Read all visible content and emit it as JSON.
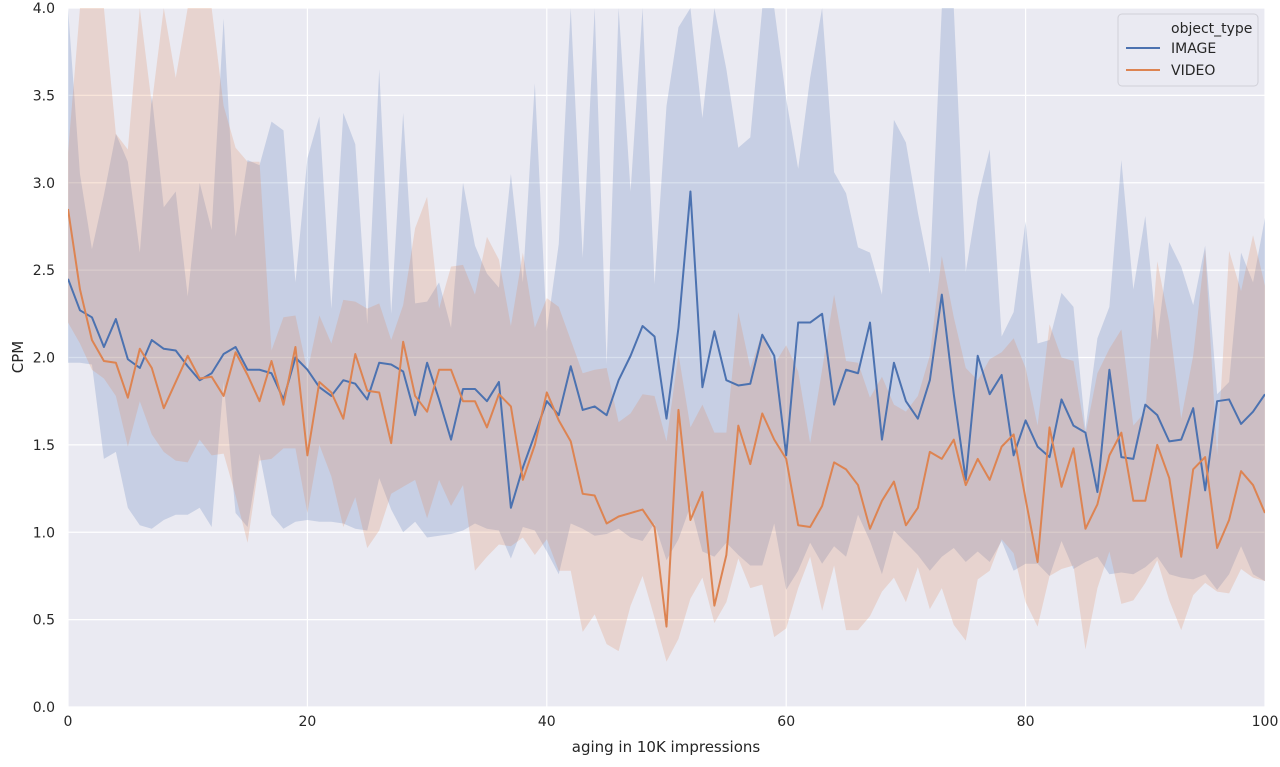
{
  "chart_data": {
    "type": "line",
    "xlabel": "aging in 10K impressions",
    "ylabel": "CPM",
    "xlim": [
      0,
      100
    ],
    "ylim": [
      0.0,
      4.0
    ],
    "xticks": [
      "0",
      "20",
      "40",
      "60",
      "80",
      "100"
    ],
    "yticks": [
      "0.0",
      "0.5",
      "1.0",
      "1.5",
      "2.0",
      "2.5",
      "3.0",
      "3.5",
      "4.0"
    ],
    "grid": true,
    "legend": {
      "title": "object_type",
      "placement": "top-right"
    },
    "x": [
      0,
      1,
      2,
      3,
      4,
      5,
      6,
      7,
      8,
      9,
      10,
      11,
      12,
      13,
      14,
      15,
      16,
      17,
      18,
      19,
      20,
      21,
      22,
      23,
      24,
      25,
      26,
      27,
      28,
      29,
      30,
      31,
      32,
      33,
      34,
      35,
      36,
      37,
      38,
      39,
      40,
      41,
      42,
      43,
      44,
      45,
      46,
      47,
      48,
      49,
      50,
      51,
      52,
      53,
      54,
      55,
      56,
      57,
      58,
      59,
      60,
      61,
      62,
      63,
      64,
      65,
      66,
      67,
      68,
      69,
      70,
      71,
      72,
      73,
      74,
      75,
      76,
      77,
      78,
      79,
      80,
      81,
      82,
      83,
      84,
      85,
      86,
      87,
      88,
      89,
      90,
      91,
      92,
      93,
      94,
      95,
      96,
      97,
      98,
      99,
      100
    ],
    "series": [
      {
        "name": "IMAGE",
        "color": "#4c72b0",
        "values": [
          2.45,
          2.27,
          2.23,
          2.06,
          2.22,
          1.99,
          1.94,
          2.1,
          2.05,
          2.04,
          1.95,
          1.87,
          1.91,
          2.02,
          2.06,
          1.93,
          1.93,
          1.91,
          1.76,
          2.0,
          1.93,
          1.83,
          1.78,
          1.87,
          1.85,
          1.76,
          1.97,
          1.96,
          1.92,
          1.67,
          1.97,
          1.76,
          1.53,
          1.82,
          1.82,
          1.75,
          1.86,
          1.14,
          1.37,
          1.56,
          1.75,
          1.67,
          1.95,
          1.7,
          1.72,
          1.67,
          1.87,
          2.01,
          2.18,
          2.12,
          1.65,
          2.17,
          2.95,
          1.83,
          2.15,
          1.87,
          1.84,
          1.85,
          2.13,
          2.01,
          1.44,
          2.2,
          2.2,
          2.25,
          1.73,
          1.93,
          1.91,
          2.2,
          1.53,
          1.97,
          1.75,
          1.65,
          1.87,
          2.36,
          1.79,
          1.3,
          2.01,
          1.79,
          1.9,
          1.44,
          1.64,
          1.49,
          1.43,
          1.76,
          1.61,
          1.57,
          1.23,
          1.93,
          1.43,
          1.42,
          1.73,
          1.67,
          1.52,
          1.53,
          1.71,
          1.24,
          1.75,
          1.76,
          1.62,
          1.69,
          1.79
        ],
        "ci_lower": [
          1.97,
          1.97,
          1.96,
          1.42,
          1.46,
          1.14,
          1.04,
          1.02,
          1.07,
          1.1,
          1.1,
          1.14,
          1.03,
          1.86,
          1.11,
          1.03,
          1.45,
          1.1,
          1.02,
          1.06,
          1.07,
          1.06,
          1.06,
          1.05,
          1.02,
          1.01,
          1.31,
          1.13,
          1.0,
          1.06,
          0.97,
          0.98,
          0.99,
          1.01,
          1.05,
          1.02,
          1.01,
          0.85,
          1.03,
          1.01,
          0.89,
          0.76,
          1.05,
          1.02,
          0.98,
          0.99,
          1.02,
          0.97,
          0.95,
          1.05,
          0.84,
          0.96,
          1.15,
          0.89,
          0.86,
          0.94,
          0.87,
          0.81,
          0.81,
          1.05,
          0.67,
          0.78,
          0.94,
          0.82,
          0.92,
          0.86,
          1.1,
          0.95,
          0.76,
          1.01,
          0.94,
          0.87,
          0.78,
          0.86,
          0.91,
          0.83,
          0.89,
          0.83,
          0.95,
          0.78,
          0.82,
          0.82,
          0.75,
          0.95,
          0.79,
          0.83,
          0.86,
          0.76,
          0.77,
          0.76,
          0.8,
          0.86,
          0.76,
          0.74,
          0.73,
          0.76,
          0.67,
          0.76,
          0.92,
          0.76,
          0.72
        ],
        "ci_upper": [
          4.0,
          3.05,
          2.62,
          2.93,
          3.28,
          3.12,
          2.6,
          3.5,
          2.86,
          2.95,
          2.35,
          3.0,
          2.73,
          3.94,
          2.69,
          3.13,
          3.1,
          3.35,
          3.3,
          2.43,
          3.14,
          3.38,
          2.28,
          3.4,
          3.22,
          2.19,
          3.65,
          2.25,
          3.4,
          2.31,
          2.32,
          2.43,
          2.17,
          3.0,
          2.64,
          2.48,
          2.4,
          3.05,
          2.43,
          3.57,
          2.15,
          2.65,
          4.0,
          2.57,
          4.0,
          1.96,
          4.0,
          2.95,
          4.0,
          2.42,
          3.44,
          3.89,
          4.0,
          3.37,
          4.0,
          3.65,
          3.2,
          3.26,
          4.0,
          4.0,
          3.48,
          3.08,
          3.6,
          4.0,
          3.06,
          2.94,
          2.63,
          2.6,
          2.36,
          3.36,
          3.23,
          2.83,
          2.48,
          4.0,
          4.0,
          2.49,
          2.91,
          3.19,
          2.12,
          2.26,
          2.78,
          2.08,
          2.1,
          2.37,
          2.29,
          1.59,
          2.11,
          2.29,
          3.13,
          2.39,
          2.81,
          2.1,
          2.66,
          2.52,
          2.3,
          2.64,
          1.79,
          1.86,
          2.6,
          2.43,
          2.8
        ]
      },
      {
        "name": "VIDEO",
        "color": "#dd8452",
        "values": [
          2.85,
          2.39,
          2.1,
          1.98,
          1.97,
          1.77,
          2.05,
          1.94,
          1.71,
          1.86,
          2.01,
          1.88,
          1.89,
          1.78,
          2.03,
          1.9,
          1.75,
          1.98,
          1.73,
          2.06,
          1.44,
          1.86,
          1.8,
          1.65,
          2.02,
          1.81,
          1.8,
          1.51,
          2.09,
          1.78,
          1.69,
          1.93,
          1.93,
          1.75,
          1.75,
          1.6,
          1.79,
          1.72,
          1.3,
          1.5,
          1.8,
          1.64,
          1.52,
          1.22,
          1.21,
          1.05,
          1.09,
          1.11,
          1.13,
          1.03,
          0.46,
          1.7,
          1.07,
          1.23,
          0.58,
          0.87,
          1.61,
          1.39,
          1.68,
          1.53,
          1.42,
          1.04,
          1.03,
          1.15,
          1.4,
          1.36,
          1.27,
          1.02,
          1.18,
          1.29,
          1.04,
          1.14,
          1.46,
          1.42,
          1.53,
          1.27,
          1.42,
          1.3,
          1.49,
          1.56,
          1.19,
          0.83,
          1.6,
          1.26,
          1.48,
          1.02,
          1.16,
          1.44,
          1.57,
          1.18,
          1.18,
          1.5,
          1.31,
          0.86,
          1.36,
          1.43,
          0.91,
          1.07,
          1.35,
          1.27,
          1.11
        ],
        "ci_lower": [
          2.2,
          2.08,
          1.93,
          1.88,
          1.78,
          1.49,
          1.75,
          1.56,
          1.46,
          1.41,
          1.4,
          1.53,
          1.44,
          1.45,
          1.21,
          0.94,
          1.41,
          1.42,
          1.48,
          1.48,
          1.11,
          1.5,
          1.32,
          1.03,
          1.2,
          0.91,
          1.01,
          1.22,
          1.26,
          1.3,
          1.08,
          1.3,
          1.15,
          1.27,
          0.78,
          0.86,
          0.93,
          0.92,
          0.97,
          0.87,
          0.96,
          0.78,
          0.78,
          0.43,
          0.53,
          0.36,
          0.32,
          0.58,
          0.75,
          0.51,
          0.26,
          0.39,
          0.62,
          0.74,
          0.48,
          0.6,
          0.85,
          0.68,
          0.7,
          0.4,
          0.45,
          0.68,
          0.86,
          0.55,
          0.81,
          0.44,
          0.44,
          0.52,
          0.66,
          0.74,
          0.6,
          0.8,
          0.56,
          0.68,
          0.47,
          0.38,
          0.73,
          0.78,
          0.96,
          0.88,
          0.6,
          0.46,
          0.75,
          0.79,
          0.81,
          0.33,
          0.68,
          0.89,
          0.59,
          0.61,
          0.71,
          0.84,
          0.61,
          0.44,
          0.64,
          0.71,
          0.66,
          0.65,
          0.79,
          0.74,
          0.72
        ],
        "ci_upper": [
          3.17,
          4.0,
          4.0,
          4.0,
          3.28,
          3.19,
          4.0,
          3.45,
          4.0,
          3.6,
          4.0,
          4.0,
          4.0,
          3.44,
          3.2,
          3.12,
          3.12,
          2.04,
          2.23,
          2.24,
          1.92,
          2.24,
          2.08,
          2.33,
          2.32,
          2.28,
          2.31,
          2.1,
          2.3,
          2.74,
          2.92,
          2.28,
          2.52,
          2.53,
          2.36,
          2.69,
          2.56,
          2.18,
          2.6,
          2.17,
          2.34,
          2.29,
          2.1,
          1.91,
          1.93,
          1.94,
          1.63,
          1.68,
          1.79,
          1.78,
          1.52,
          2.02,
          1.6,
          1.73,
          1.57,
          1.57,
          2.26,
          1.94,
          2.14,
          1.96,
          2.07,
          1.92,
          1.51,
          1.93,
          2.36,
          1.98,
          1.97,
          1.77,
          1.89,
          1.73,
          1.69,
          1.78,
          2.01,
          2.58,
          2.23,
          1.94,
          1.87,
          1.99,
          2.03,
          2.11,
          1.94,
          1.61,
          2.19,
          2.0,
          1.98,
          1.56,
          1.91,
          2.05,
          2.16,
          1.61,
          1.69,
          2.55,
          2.2,
          1.65,
          2.01,
          2.62,
          1.44,
          2.61,
          2.38,
          2.7,
          2.41
        ]
      }
    ]
  }
}
